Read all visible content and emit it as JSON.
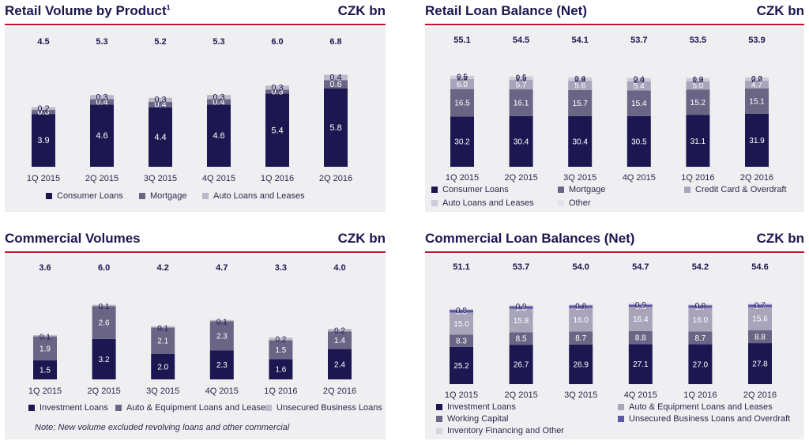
{
  "colors": {
    "title": "#1c1751",
    "rule": "#c8102e",
    "panel_bg": "#efeff2",
    "total_text": "#1c1751"
  },
  "panels": [
    {
      "title": "Retail Volume by Product",
      "title_sup": "1",
      "unit": "CZK bn",
      "legend": [
        "Consumer Loans",
        "Mortgage",
        "Auto Loans and Leases"
      ],
      "note": ""
    },
    {
      "title": "Retail Loan Balance (Net)",
      "title_sup": "",
      "unit": "CZK bn",
      "legend": [
        "Consumer Loans",
        "Mortgage",
        "Credit Card & Overdraft",
        "Auto Loans and Leases",
        "Other"
      ],
      "note": ""
    },
    {
      "title": "Commercial Volumes",
      "title_sup": "",
      "unit": "CZK bn",
      "legend": [
        "Investment Loans",
        "Auto & Equipment Loans and Leases",
        "Unsecured Business Loans"
      ],
      "note": "Note: New volume excluded revolving loans and other commercial"
    },
    {
      "title": "Commercial Loan Balances (Net)",
      "title_sup": "",
      "unit": "CZK bn",
      "legend": [
        "Investment Loans",
        "Auto & Equipment Loans and Leases",
        "Working Capital",
        "Unsecured Business Loans and Overdraft",
        "Inventory Financing and Other"
      ],
      "note": ""
    }
  ],
  "chart_data": [
    {
      "type": "bar",
      "stacked": true,
      "title": "Retail Volume by Product",
      "unit": "CZK bn",
      "categories": [
        "1Q 2015",
        "2Q 2015",
        "3Q 2015",
        "4Q 2015",
        "1Q 2016",
        "2Q 2016"
      ],
      "totals": [
        "4.5",
        "5.3",
        "5.2",
        "5.3",
        "6.0",
        "6.8"
      ],
      "ylim": [
        0,
        8
      ],
      "series": [
        {
          "name": "Consumer Loans",
          "color": "#1c1751",
          "label_color": "#ffffff",
          "values": [
            3.9,
            4.6,
            4.4,
            4.6,
            5.4,
            5.8
          ]
        },
        {
          "name": "Mortgage",
          "color": "#6b6585",
          "label_color": "#ffffff",
          "values": [
            0.3,
            0.4,
            0.4,
            0.4,
            0.3,
            0.6
          ]
        },
        {
          "name": "Auto Loans and Leases",
          "color": "#bdb9c9",
          "label_color": "#1c1751",
          "values": [
            0.2,
            0.3,
            0.3,
            0.3,
            0.3,
            0.4
          ]
        }
      ]
    },
    {
      "type": "bar",
      "stacked": true,
      "title": "Retail Loan Balance (Net)",
      "unit": "CZK bn",
      "categories": [
        "1Q 2015",
        "2Q 2015",
        "3Q 2015",
        "4Q 2015",
        "1Q 2016",
        "2Q 2016"
      ],
      "totals": [
        "55.1",
        "54.5",
        "54.1",
        "53.7",
        "53.5",
        "53.9"
      ],
      "ylim": [
        0,
        66
      ],
      "series": [
        {
          "name": "Consumer Loans",
          "color": "#1c1751",
          "label_color": "#ffffff",
          "values": [
            30.2,
            30.4,
            30.4,
            30.5,
            31.1,
            31.9
          ]
        },
        {
          "name": "Mortgage",
          "color": "#6b6585",
          "label_color": "#ffffff",
          "values": [
            16.5,
            16.1,
            15.7,
            15.4,
            15.2,
            15.1
          ]
        },
        {
          "name": "Credit Card & Overdraft",
          "color": "#a9a4ba",
          "label_color": "#ffffff",
          "values": [
            6.0,
            5.7,
            5.6,
            5.4,
            5.0,
            4.7
          ]
        },
        {
          "name": "Auto Loans and Leases",
          "color": "#cfccd8",
          "label_color": "#1c1751",
          "values": [
            1.9,
            1.9,
            1.9,
            2.0,
            1.9,
            2.0
          ]
        },
        {
          "name": "Other",
          "color": "#e4e2ea",
          "label_color": "#1c1751",
          "values": [
            0.5,
            0.5,
            0.4,
            0.4,
            0.3,
            0.2
          ]
        }
      ]
    },
    {
      "type": "bar",
      "stacked": true,
      "title": "Commercial Volumes",
      "unit": "CZK bn",
      "categories": [
        "1Q 2015",
        "2Q 2015",
        "3Q 2015",
        "4Q 2015",
        "1Q 2016",
        "2Q 2016"
      ],
      "totals": [
        "3.6",
        "6.0",
        "4.2",
        "4.7",
        "3.3",
        "4.0"
      ],
      "ylim": [
        0,
        7.5
      ],
      "series": [
        {
          "name": "Investment Loans",
          "color": "#1c1751",
          "label_color": "#ffffff",
          "values": [
            1.5,
            3.2,
            2.0,
            2.3,
            1.6,
            2.4
          ]
        },
        {
          "name": "Auto & Equipment Loans and Leases",
          "color": "#6b6585",
          "label_color": "#ffffff",
          "values": [
            1.9,
            2.6,
            2.1,
            2.3,
            1.5,
            1.4
          ]
        },
        {
          "name": "Unsecured Business Loans",
          "color": "#bdb9c9",
          "label_color": "#1c1751",
          "values": [
            0.1,
            0.1,
            0.1,
            0.1,
            0.2,
            0.2
          ]
        }
      ]
    },
    {
      "type": "bar",
      "stacked": true,
      "title": "Commercial Loan Balances (Net)",
      "unit": "CZK bn",
      "categories": [
        "1Q 2015",
        "2Q 2015",
        "3Q 2015",
        "4Q 2015",
        "1Q 2016",
        "2Q 2016"
      ],
      "totals": [
        "51.1",
        "53.7",
        "54.0",
        "54.7",
        "54.2",
        "54.6"
      ],
      "ylim": [
        0,
        68
      ],
      "series": [
        {
          "name": "Investment Loans",
          "color": "#1c1751",
          "label_color": "#ffffff",
          "values": [
            25.2,
            26.7,
            26.9,
            27.1,
            27.0,
            27.8
          ]
        },
        {
          "name": "Working Capital",
          "color": "#6b6585",
          "label_color": "#ffffff",
          "values": [
            8.3,
            8.5,
            8.7,
            8.8,
            8.7,
            8.8
          ]
        },
        {
          "name": "Auto & Equipment Loans and Leases",
          "color": "#a9a4ba",
          "label_color": "#ffffff",
          "values": [
            15.0,
            15.8,
            16.0,
            16.4,
            16.0,
            15.6
          ]
        },
        {
          "name": "Unsecured Business Loans and Overdraft",
          "color": "#5a56a8",
          "label_color": "#ffffff",
          "values": [
            1.8,
            1.8,
            1.7,
            1.6,
            1.7,
            1.7
          ]
        },
        {
          "name": "Inventory Financing and Other",
          "color": "#d7d5df",
          "label_color": "#1c1751",
          "values": [
            0.8,
            0.9,
            0.8,
            0.9,
            0.9,
            0.7
          ]
        }
      ]
    }
  ]
}
